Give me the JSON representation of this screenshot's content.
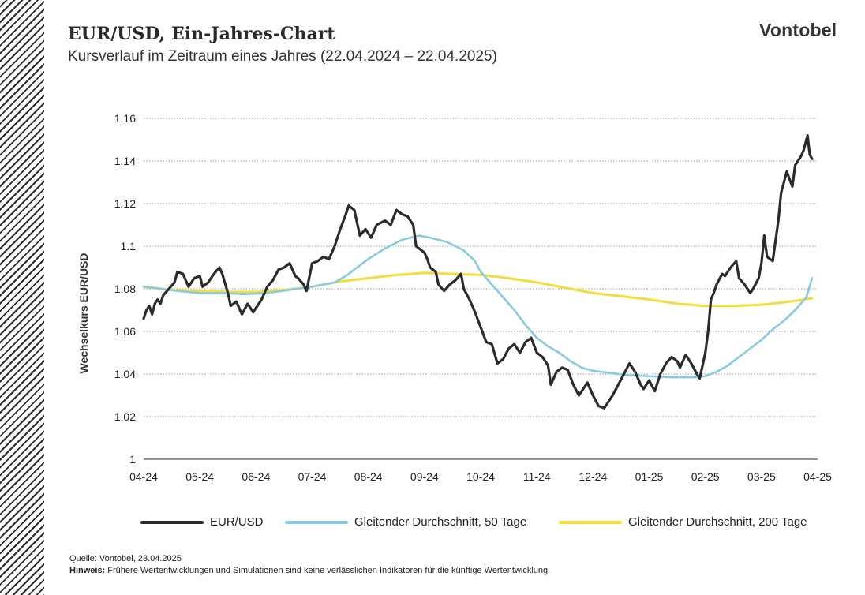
{
  "header": {
    "title": "EUR/USD, Ein-Jahres-Chart",
    "subtitle": "Kursverlauf im Zeitraum eines Jahres (22.04.2024 – 22.04.2025)",
    "logo": "Vontobel"
  },
  "footer": {
    "source": "Quelle:  Vontobel,  23.04.2025",
    "note_label": "Hinweis:",
    "note_text": " Frühere Wertentwicklungen und Simulationen sind keine verlässlichen Indikatoren für die künftige Wertentwicklung."
  },
  "chart_data": {
    "type": "line",
    "title": "EUR/USD, Ein-Jahres-Chart",
    "subtitle": "Kursverlauf im Zeitraum eines Jahres (22.04.2024 – 22.04.2025)",
    "xlabel": "",
    "ylabel": "Wechselkurs EUR/USD",
    "ylim": [
      1.0,
      1.16
    ],
    "yticks": [
      "1",
      "1.02",
      "1.04",
      "1.06",
      "1.08",
      "1.1",
      "1.12",
      "1.14",
      "1.16"
    ],
    "xticks": [
      "04-24",
      "05-24",
      "06-24",
      "07-24",
      "08-24",
      "09-24",
      "10-24",
      "11-24",
      "12-24",
      "01-25",
      "02-25",
      "03-25",
      "04-25"
    ],
    "grid": true,
    "legend_position": "bottom",
    "series": [
      {
        "name": "EUR/USD",
        "color": "#2b2b2b",
        "points": [
          [
            0.0,
            1.066
          ],
          [
            0.05,
            1.07
          ],
          [
            0.1,
            1.072
          ],
          [
            0.15,
            1.068
          ],
          [
            0.2,
            1.073
          ],
          [
            0.25,
            1.075
          ],
          [
            0.3,
            1.073
          ],
          [
            0.35,
            1.077
          ],
          [
            0.45,
            1.08
          ],
          [
            0.55,
            1.083
          ],
          [
            0.6,
            1.088
          ],
          [
            0.7,
            1.087
          ],
          [
            0.8,
            1.081
          ],
          [
            0.9,
            1.085
          ],
          [
            1.0,
            1.086
          ],
          [
            1.05,
            1.081
          ],
          [
            1.15,
            1.083
          ],
          [
            1.25,
            1.087
          ],
          [
            1.35,
            1.09
          ],
          [
            1.4,
            1.087
          ],
          [
            1.5,
            1.078
          ],
          [
            1.55,
            1.072
          ],
          [
            1.65,
            1.074
          ],
          [
            1.75,
            1.068
          ],
          [
            1.85,
            1.073
          ],
          [
            1.95,
            1.069
          ],
          [
            2.0,
            1.071
          ],
          [
            2.1,
            1.075
          ],
          [
            2.2,
            1.081
          ],
          [
            2.3,
            1.084
          ],
          [
            2.4,
            1.089
          ],
          [
            2.5,
            1.09
          ],
          [
            2.6,
            1.092
          ],
          [
            2.7,
            1.086
          ],
          [
            2.75,
            1.085
          ],
          [
            2.85,
            1.082
          ],
          [
            2.9,
            1.079
          ],
          [
            3.0,
            1.092
          ],
          [
            3.1,
            1.093
          ],
          [
            3.2,
            1.095
          ],
          [
            3.3,
            1.094
          ],
          [
            3.4,
            1.1
          ],
          [
            3.5,
            1.108
          ],
          [
            3.6,
            1.115
          ],
          [
            3.65,
            1.119
          ],
          [
            3.75,
            1.117
          ],
          [
            3.85,
            1.105
          ],
          [
            3.95,
            1.108
          ],
          [
            4.05,
            1.104
          ],
          [
            4.15,
            1.11
          ],
          [
            4.3,
            1.112
          ],
          [
            4.4,
            1.11
          ],
          [
            4.5,
            1.117
          ],
          [
            4.6,
            1.115
          ],
          [
            4.7,
            1.114
          ],
          [
            4.8,
            1.11
          ],
          [
            4.85,
            1.1
          ],
          [
            5.0,
            1.097
          ],
          [
            5.05,
            1.094
          ],
          [
            5.1,
            1.09
          ],
          [
            5.2,
            1.088
          ],
          [
            5.25,
            1.082
          ],
          [
            5.35,
            1.079
          ],
          [
            5.45,
            1.082
          ],
          [
            5.55,
            1.084
          ],
          [
            5.65,
            1.087
          ],
          [
            5.7,
            1.08
          ],
          [
            5.8,
            1.075
          ],
          [
            5.9,
            1.069
          ],
          [
            6.0,
            1.062
          ],
          [
            6.1,
            1.055
          ],
          [
            6.2,
            1.054
          ],
          [
            6.3,
            1.045
          ],
          [
            6.4,
            1.047
          ],
          [
            6.5,
            1.052
          ],
          [
            6.6,
            1.054
          ],
          [
            6.7,
            1.05
          ],
          [
            6.8,
            1.055
          ],
          [
            6.9,
            1.057
          ],
          [
            7.0,
            1.05
          ],
          [
            7.1,
            1.048
          ],
          [
            7.2,
            1.044
          ],
          [
            7.25,
            1.035
          ],
          [
            7.35,
            1.041
          ],
          [
            7.45,
            1.043
          ],
          [
            7.55,
            1.042
          ],
          [
            7.65,
            1.035
          ],
          [
            7.75,
            1.03
          ],
          [
            7.85,
            1.034
          ],
          [
            7.9,
            1.036
          ],
          [
            8.0,
            1.03
          ],
          [
            8.1,
            1.025
          ],
          [
            8.2,
            1.024
          ],
          [
            8.3,
            1.028
          ],
          [
            8.35,
            1.03
          ],
          [
            8.45,
            1.035
          ],
          [
            8.55,
            1.04
          ],
          [
            8.65,
            1.045
          ],
          [
            8.75,
            1.041
          ],
          [
            8.85,
            1.035
          ],
          [
            8.9,
            1.033
          ],
          [
            9.0,
            1.037
          ],
          [
            9.1,
            1.032
          ],
          [
            9.2,
            1.04
          ],
          [
            9.3,
            1.045
          ],
          [
            9.4,
            1.048
          ],
          [
            9.5,
            1.046
          ],
          [
            9.55,
            1.043
          ],
          [
            9.65,
            1.049
          ],
          [
            9.75,
            1.045
          ],
          [
            9.85,
            1.04
          ],
          [
            9.9,
            1.038
          ],
          [
            10.0,
            1.05
          ],
          [
            10.05,
            1.06
          ],
          [
            10.1,
            1.075
          ],
          [
            10.15,
            1.078
          ],
          [
            10.2,
            1.082
          ],
          [
            10.3,
            1.087
          ],
          [
            10.35,
            1.086
          ],
          [
            10.45,
            1.09
          ],
          [
            10.55,
            1.093
          ],
          [
            10.6,
            1.085
          ],
          [
            10.7,
            1.082
          ],
          [
            10.8,
            1.078
          ],
          [
            10.85,
            1.08
          ],
          [
            10.95,
            1.085
          ],
          [
            11.0,
            1.092
          ],
          [
            11.05,
            1.105
          ],
          [
            11.1,
            1.095
          ],
          [
            11.2,
            1.093
          ],
          [
            11.3,
            1.112
          ],
          [
            11.35,
            1.125
          ],
          [
            11.45,
            1.135
          ],
          [
            11.55,
            1.128
          ],
          [
            11.6,
            1.138
          ],
          [
            11.7,
            1.142
          ],
          [
            11.75,
            1.145
          ],
          [
            11.82,
            1.152
          ],
          [
            11.86,
            1.143
          ],
          [
            11.9,
            1.141
          ]
        ]
      },
      {
        "name": "Gleitender Durchschnitt, 50 Tage",
        "color": "#86cbe0",
        "points": [
          [
            0.0,
            1.081
          ],
          [
            0.3,
            1.08
          ],
          [
            0.6,
            1.079
          ],
          [
            1.0,
            1.078
          ],
          [
            1.4,
            1.078
          ],
          [
            1.8,
            1.0775
          ],
          [
            2.2,
            1.078
          ],
          [
            2.6,
            1.0795
          ],
          [
            3.0,
            1.081
          ],
          [
            3.4,
            1.083
          ],
          [
            3.6,
            1.086
          ],
          [
            3.8,
            1.09
          ],
          [
            4.0,
            1.094
          ],
          [
            4.3,
            1.099
          ],
          [
            4.6,
            1.103
          ],
          [
            4.9,
            1.105
          ],
          [
            5.1,
            1.104
          ],
          [
            5.4,
            1.102
          ],
          [
            5.7,
            1.098
          ],
          [
            5.9,
            1.093
          ],
          [
            6.0,
            1.088
          ],
          [
            6.2,
            1.082
          ],
          [
            6.4,
            1.076
          ],
          [
            6.6,
            1.07
          ],
          [
            6.8,
            1.063
          ],
          [
            7.0,
            1.057
          ],
          [
            7.2,
            1.053
          ],
          [
            7.4,
            1.05
          ],
          [
            7.6,
            1.046
          ],
          [
            7.8,
            1.043
          ],
          [
            8.0,
            1.0415
          ],
          [
            8.3,
            1.0405
          ],
          [
            8.6,
            1.0395
          ],
          [
            9.0,
            1.039
          ],
          [
            9.4,
            1.0385
          ],
          [
            9.6,
            1.0385
          ],
          [
            9.8,
            1.0385
          ],
          [
            10.0,
            1.039
          ],
          [
            10.2,
            1.041
          ],
          [
            10.4,
            1.044
          ],
          [
            10.6,
            1.048
          ],
          [
            10.8,
            1.052
          ],
          [
            11.0,
            1.056
          ],
          [
            11.2,
            1.061
          ],
          [
            11.4,
            1.065
          ],
          [
            11.6,
            1.07
          ],
          [
            11.8,
            1.076
          ],
          [
            11.9,
            1.085
          ]
        ]
      },
      {
        "name": "Gleitender Durchschnitt, 200 Tage",
        "color": "#f2dd3a",
        "points": [
          [
            0.0,
            1.081
          ],
          [
            0.5,
            1.0795
          ],
          [
            1.0,
            1.079
          ],
          [
            1.5,
            1.0785
          ],
          [
            2.0,
            1.0785
          ],
          [
            2.5,
            1.0795
          ],
          [
            3.0,
            1.081
          ],
          [
            3.5,
            1.0835
          ],
          [
            4.0,
            1.085
          ],
          [
            4.5,
            1.0865
          ],
          [
            5.0,
            1.0875
          ],
          [
            5.5,
            1.087
          ],
          [
            6.0,
            1.0865
          ],
          [
            6.5,
            1.085
          ],
          [
            7.0,
            1.083
          ],
          [
            7.5,
            1.0805
          ],
          [
            8.0,
            1.078
          ],
          [
            8.5,
            1.0765
          ],
          [
            9.0,
            1.075
          ],
          [
            9.5,
            1.073
          ],
          [
            10.0,
            1.072
          ],
          [
            10.5,
            1.072
          ],
          [
            11.0,
            1.0725
          ],
          [
            11.5,
            1.074
          ],
          [
            11.9,
            1.0755
          ]
        ]
      }
    ]
  }
}
